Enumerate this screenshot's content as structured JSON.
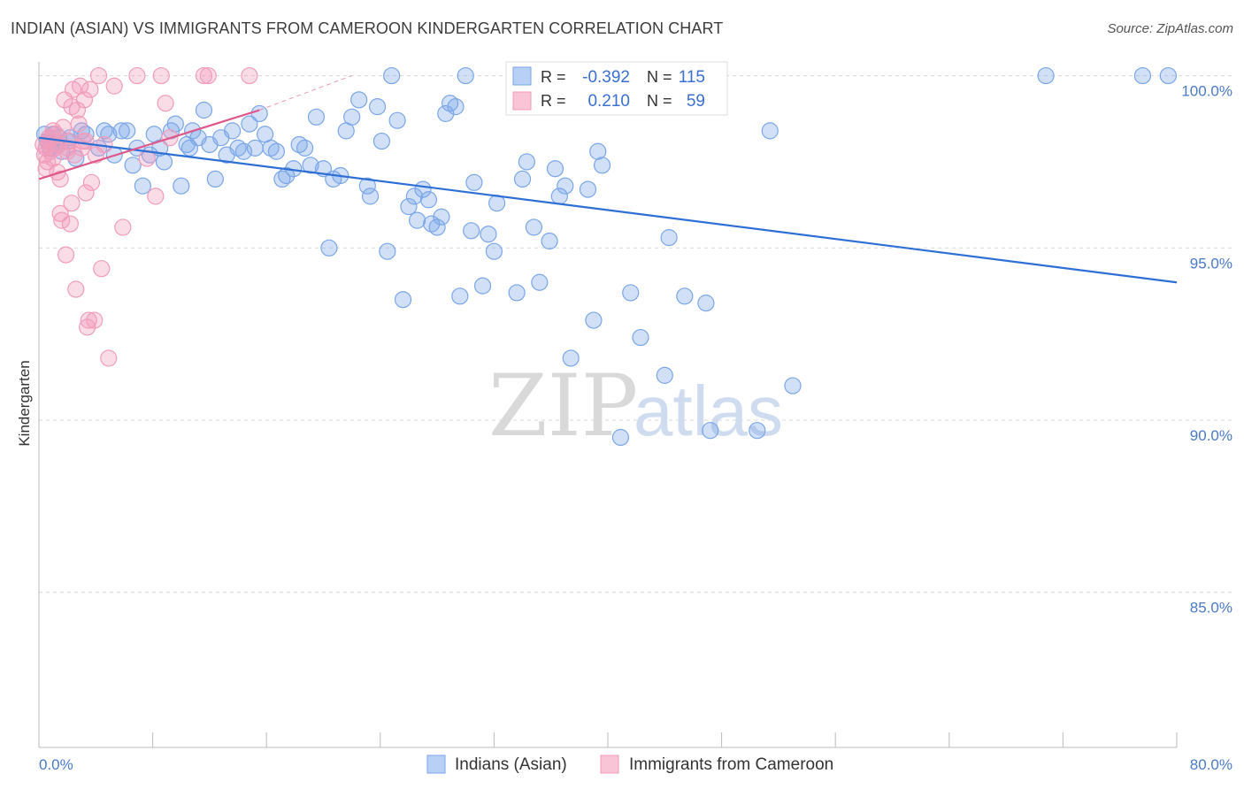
{
  "chart_data": {
    "type": "scatter",
    "title": "INDIAN (ASIAN) VS IMMIGRANTS FROM CAMEROON KINDERGARTEN CORRELATION CHART",
    "source": "Source: ZipAtlas.com",
    "ylabel": "Kindergarten",
    "xlim": [
      0,
      80
    ],
    "ylim": [
      80.5,
      100.4
    ],
    "x_tick_labels": {
      "left": "0.0%",
      "right": "80.0%"
    },
    "y_ticks": [
      {
        "value": 100,
        "label": "100.0%"
      },
      {
        "value": 95,
        "label": "95.0%"
      },
      {
        "value": 90,
        "label": "90.0%"
      },
      {
        "value": 85,
        "label": "85.0%"
      }
    ],
    "grid": "horizontal dashed",
    "stats": [
      {
        "r_label": "R =",
        "r": "-0.392",
        "n_label": "N =",
        "n": "115"
      },
      {
        "r_label": "R =",
        "r": "0.210",
        "n_label": "N =",
        "n": "59"
      }
    ],
    "legend": [
      "Indians (Asian)",
      "Immigrants from Cameroon"
    ],
    "watermark": {
      "zip": "ZIP",
      "atlas": "atlas"
    },
    "series": [
      {
        "name": "Indians (Asian)",
        "color": "#7aa6e8",
        "trend_color": "#2e6fd6",
        "trend": {
          "x0": 0,
          "y0": 98.2,
          "x1": 80,
          "y1": 94.0
        },
        "points": [
          [
            0.4,
            98.3
          ],
          [
            0.6,
            98.1
          ],
          [
            0.8,
            97.9
          ],
          [
            1.0,
            98.3
          ],
          [
            1.2,
            98.0
          ],
          [
            1.4,
            98.2
          ],
          [
            1.6,
            97.8
          ],
          [
            2.0,
            98.1
          ],
          [
            2.2,
            98.2
          ],
          [
            2.6,
            97.6
          ],
          [
            3.0,
            98.4
          ],
          [
            3.3,
            98.3
          ],
          [
            4.2,
            97.9
          ],
          [
            4.6,
            98.4
          ],
          [
            4.9,
            98.3
          ],
          [
            5.3,
            97.7
          ],
          [
            5.8,
            98.4
          ],
          [
            6.2,
            98.4
          ],
          [
            6.6,
            97.4
          ],
          [
            6.9,
            97.9
          ],
          [
            7.3,
            96.8
          ],
          [
            7.8,
            97.7
          ],
          [
            8.1,
            98.3
          ],
          [
            8.5,
            97.9
          ],
          [
            8.8,
            97.5
          ],
          [
            9.3,
            98.4
          ],
          [
            9.6,
            98.6
          ],
          [
            10.0,
            96.8
          ],
          [
            10.4,
            98.0
          ],
          [
            10.8,
            98.4
          ],
          [
            11.2,
            98.2
          ],
          [
            11.6,
            99.0
          ],
          [
            12.0,
            98.0
          ],
          [
            12.4,
            97.0
          ],
          [
            12.8,
            98.2
          ],
          [
            13.2,
            97.7
          ],
          [
            13.6,
            98.4
          ],
          [
            14.0,
            97.9
          ],
          [
            14.4,
            97.8
          ],
          [
            14.8,
            98.6
          ],
          [
            15.2,
            97.9
          ],
          [
            15.5,
            98.9
          ],
          [
            15.9,
            98.3
          ],
          [
            16.3,
            97.9
          ],
          [
            16.7,
            97.8
          ],
          [
            17.1,
            97.0
          ],
          [
            17.4,
            97.1
          ],
          [
            17.9,
            97.3
          ],
          [
            18.3,
            98.0
          ],
          [
            18.7,
            97.9
          ],
          [
            19.1,
            97.4
          ],
          [
            19.5,
            98.8
          ],
          [
            20.0,
            97.3
          ],
          [
            20.4,
            95.0
          ],
          [
            20.7,
            97.0
          ],
          [
            21.2,
            97.1
          ],
          [
            21.6,
            98.4
          ],
          [
            22.0,
            98.8
          ],
          [
            22.5,
            99.3
          ],
          [
            23.1,
            96.8
          ],
          [
            23.3,
            96.5
          ],
          [
            23.8,
            99.1
          ],
          [
            24.1,
            98.1
          ],
          [
            24.5,
            94.9
          ],
          [
            24.8,
            100.0
          ],
          [
            25.2,
            98.7
          ],
          [
            25.6,
            93.5
          ],
          [
            26.0,
            96.2
          ],
          [
            26.4,
            96.5
          ],
          [
            26.6,
            95.8
          ],
          [
            27.0,
            96.7
          ],
          [
            27.4,
            96.4
          ],
          [
            27.6,
            95.7
          ],
          [
            28.0,
            95.6
          ],
          [
            28.3,
            95.9
          ],
          [
            28.6,
            98.9
          ],
          [
            28.9,
            99.2
          ],
          [
            29.3,
            99.1
          ],
          [
            29.6,
            93.6
          ],
          [
            30.0,
            100.0
          ],
          [
            30.4,
            95.5
          ],
          [
            30.6,
            96.9
          ],
          [
            31.2,
            93.9
          ],
          [
            31.6,
            95.4
          ],
          [
            32.0,
            94.9
          ],
          [
            32.2,
            96.3
          ],
          [
            33.6,
            93.7
          ],
          [
            34.0,
            97.0
          ],
          [
            34.3,
            97.5
          ],
          [
            34.8,
            95.6
          ],
          [
            35.2,
            94.0
          ],
          [
            35.9,
            95.2
          ],
          [
            36.6,
            96.5
          ],
          [
            37.0,
            96.8
          ],
          [
            37.4,
            91.8
          ],
          [
            38.6,
            96.7
          ],
          [
            39.0,
            92.9
          ],
          [
            39.3,
            97.8
          ],
          [
            39.6,
            97.4
          ],
          [
            41.6,
            93.7
          ],
          [
            42.3,
            92.4
          ],
          [
            44.0,
            91.3
          ],
          [
            44.3,
            95.3
          ],
          [
            45.4,
            93.6
          ],
          [
            46.9,
            93.4
          ],
          [
            47.2,
            89.7
          ],
          [
            50.5,
            89.7
          ],
          [
            51.4,
            98.4
          ],
          [
            53.0,
            91.0
          ],
          [
            70.8,
            100.0
          ],
          [
            77.6,
            100.0
          ],
          [
            79.4,
            100.0
          ],
          [
            40.9,
            89.5
          ],
          [
            36.3,
            97.3
          ],
          [
            10.6,
            97.9
          ]
        ]
      },
      {
        "name": "Immigrants from Cameroon",
        "color": "#f29cba",
        "trend_color": "#e0578a",
        "trend": {
          "x0": 0,
          "y0": 97.0,
          "x1": 15.5,
          "y1": 99.0
        },
        "trend_dashed_to": {
          "x": 22.0,
          "y": 100.0
        },
        "points": [
          [
            0.3,
            98.0
          ],
          [
            0.4,
            97.7
          ],
          [
            0.5,
            97.9
          ],
          [
            0.6,
            97.5
          ],
          [
            0.7,
            98.1
          ],
          [
            0.8,
            97.8
          ],
          [
            0.9,
            98.2
          ],
          [
            1.0,
            97.6
          ],
          [
            1.1,
            97.9
          ],
          [
            1.2,
            98.3
          ],
          [
            1.3,
            97.2
          ],
          [
            1.4,
            98.0
          ],
          [
            1.5,
            96.0
          ],
          [
            1.6,
            95.8
          ],
          [
            1.7,
            98.5
          ],
          [
            1.8,
            99.3
          ],
          [
            1.9,
            94.8
          ],
          [
            2.0,
            97.9
          ],
          [
            2.1,
            98.1
          ],
          [
            2.2,
            95.7
          ],
          [
            2.3,
            96.3
          ],
          [
            2.4,
            99.6
          ],
          [
            2.5,
            97.7
          ],
          [
            2.6,
            93.8
          ],
          [
            2.7,
            99.0
          ],
          [
            2.8,
            98.6
          ],
          [
            2.9,
            99.7
          ],
          [
            3.0,
            97.9
          ],
          [
            3.1,
            98.1
          ],
          [
            3.2,
            99.3
          ],
          [
            3.3,
            96.6
          ],
          [
            3.4,
            92.7
          ],
          [
            3.5,
            92.9
          ],
          [
            3.6,
            99.6
          ],
          [
            3.7,
            96.9
          ],
          [
            3.9,
            92.9
          ],
          [
            4.0,
            97.7
          ],
          [
            4.2,
            100.0
          ],
          [
            4.4,
            94.4
          ],
          [
            4.6,
            98.0
          ],
          [
            4.9,
            91.8
          ],
          [
            5.3,
            99.7
          ],
          [
            5.9,
            95.6
          ],
          [
            6.9,
            100.0
          ],
          [
            7.6,
            97.6
          ],
          [
            8.2,
            96.5
          ],
          [
            8.6,
            100.0
          ],
          [
            8.9,
            99.2
          ],
          [
            9.2,
            98.2
          ],
          [
            11.6,
            100.0
          ],
          [
            11.9,
            100.0
          ],
          [
            14.8,
            100.0
          ],
          [
            0.5,
            97.3
          ],
          [
            1.0,
            98.4
          ],
          [
            2.3,
            99.1
          ],
          [
            3.3,
            98.1
          ],
          [
            0.7,
            98.2
          ],
          [
            1.5,
            97.0
          ],
          [
            2.0,
            97.8
          ]
        ]
      }
    ]
  }
}
